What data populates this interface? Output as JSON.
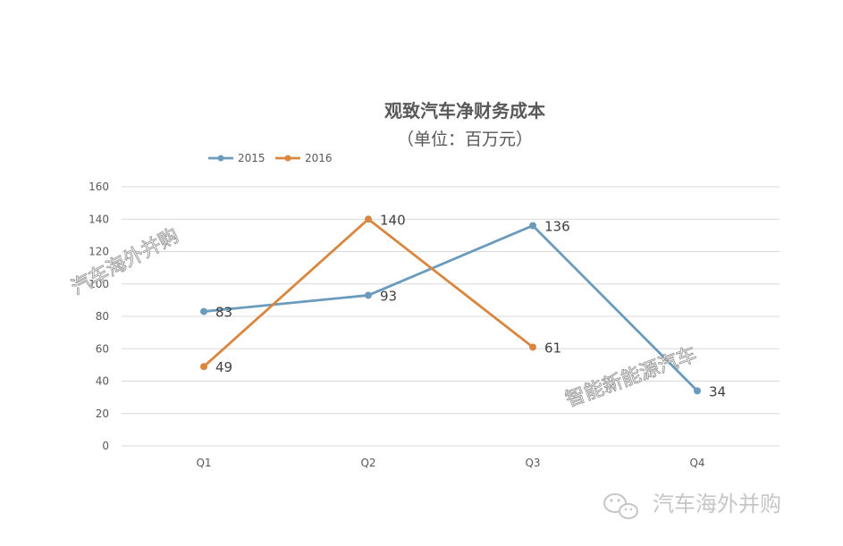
{
  "chart_data": {
    "type": "line",
    "title": "观致汽车净财务成本",
    "subtitle": "（单位：百万元）",
    "categories": [
      "Q1",
      "Q2",
      "Q3",
      "Q4"
    ],
    "series": [
      {
        "name": "2015",
        "color": "#6a9bbd",
        "values": [
          83,
          93,
          136,
          34
        ]
      },
      {
        "name": "2016",
        "color": "#d9863f",
        "values": [
          49,
          140,
          61,
          null
        ]
      }
    ],
    "xlabel": "",
    "ylabel": "",
    "ylim": [
      0,
      160
    ],
    "yticks": [
      0,
      20,
      40,
      60,
      80,
      100,
      120,
      140,
      160
    ],
    "grid": true,
    "legend_position": "top-left"
  },
  "watermarks": {
    "left": "汽车海外并购",
    "right": "智能新能源汽车",
    "footer": "汽车海外并购"
  },
  "icons": {
    "footer_icon": "wechat-icon"
  }
}
